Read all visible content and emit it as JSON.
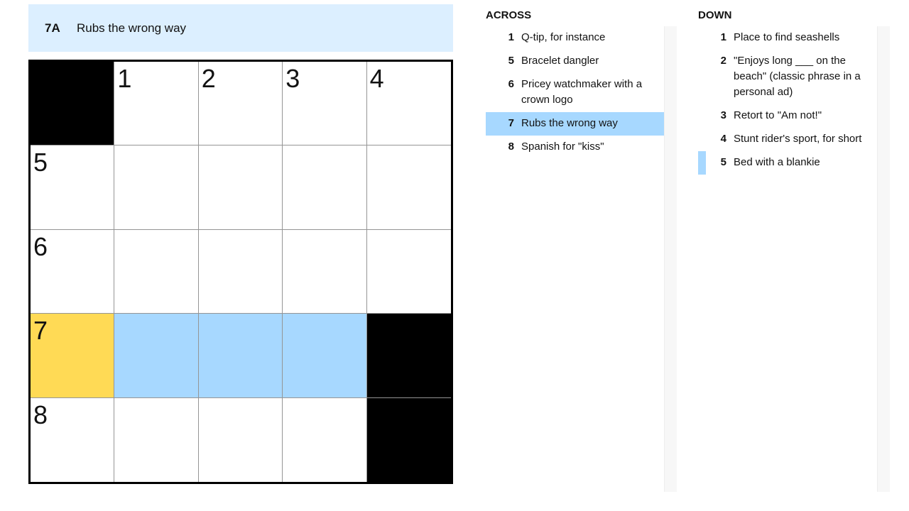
{
  "current_clue": {
    "number": "7A",
    "text": "Rubs the wrong way"
  },
  "grid": [
    [
      {
        "b": true
      },
      {
        "n": "1"
      },
      {
        "n": "2"
      },
      {
        "n": "3"
      },
      {
        "n": "4"
      }
    ],
    [
      {
        "n": "5"
      },
      {},
      {},
      {},
      {}
    ],
    [
      {
        "n": "6"
      },
      {},
      {},
      {},
      {}
    ],
    [
      {
        "n": "7",
        "s": "selected"
      },
      {
        "s": "highlight"
      },
      {
        "s": "highlight"
      },
      {
        "s": "highlight"
      },
      {
        "b": true
      }
    ],
    [
      {
        "n": "8"
      },
      {},
      {},
      {},
      {
        "b": true
      }
    ]
  ],
  "colors": {
    "selected": "#ffda55",
    "highlight": "#a7d8ff",
    "clue_bar": "#dcefff"
  },
  "across": {
    "title": "ACROSS",
    "clues": [
      {
        "num": "1",
        "text": "Q-tip, for instance"
      },
      {
        "num": "5",
        "text": "Bracelet dangler"
      },
      {
        "num": "6",
        "text": "Pricey watchmaker with a crown logo"
      },
      {
        "num": "7",
        "text": "Rubs the wrong way",
        "state": "active"
      },
      {
        "num": "8",
        "text": "Spanish for \"kiss\""
      }
    ]
  },
  "down": {
    "title": "DOWN",
    "clues": [
      {
        "num": "1",
        "text": "Place to find seashells"
      },
      {
        "num": "2",
        "text": "\"Enjoys long ___ on the beach\" (classic phrase in a personal ad)"
      },
      {
        "num": "3",
        "text": "Retort to \"Am not!\""
      },
      {
        "num": "4",
        "text": "Stunt rider's sport, for short"
      },
      {
        "num": "5",
        "text": "Bed with a blankie",
        "state": "cross"
      }
    ]
  }
}
